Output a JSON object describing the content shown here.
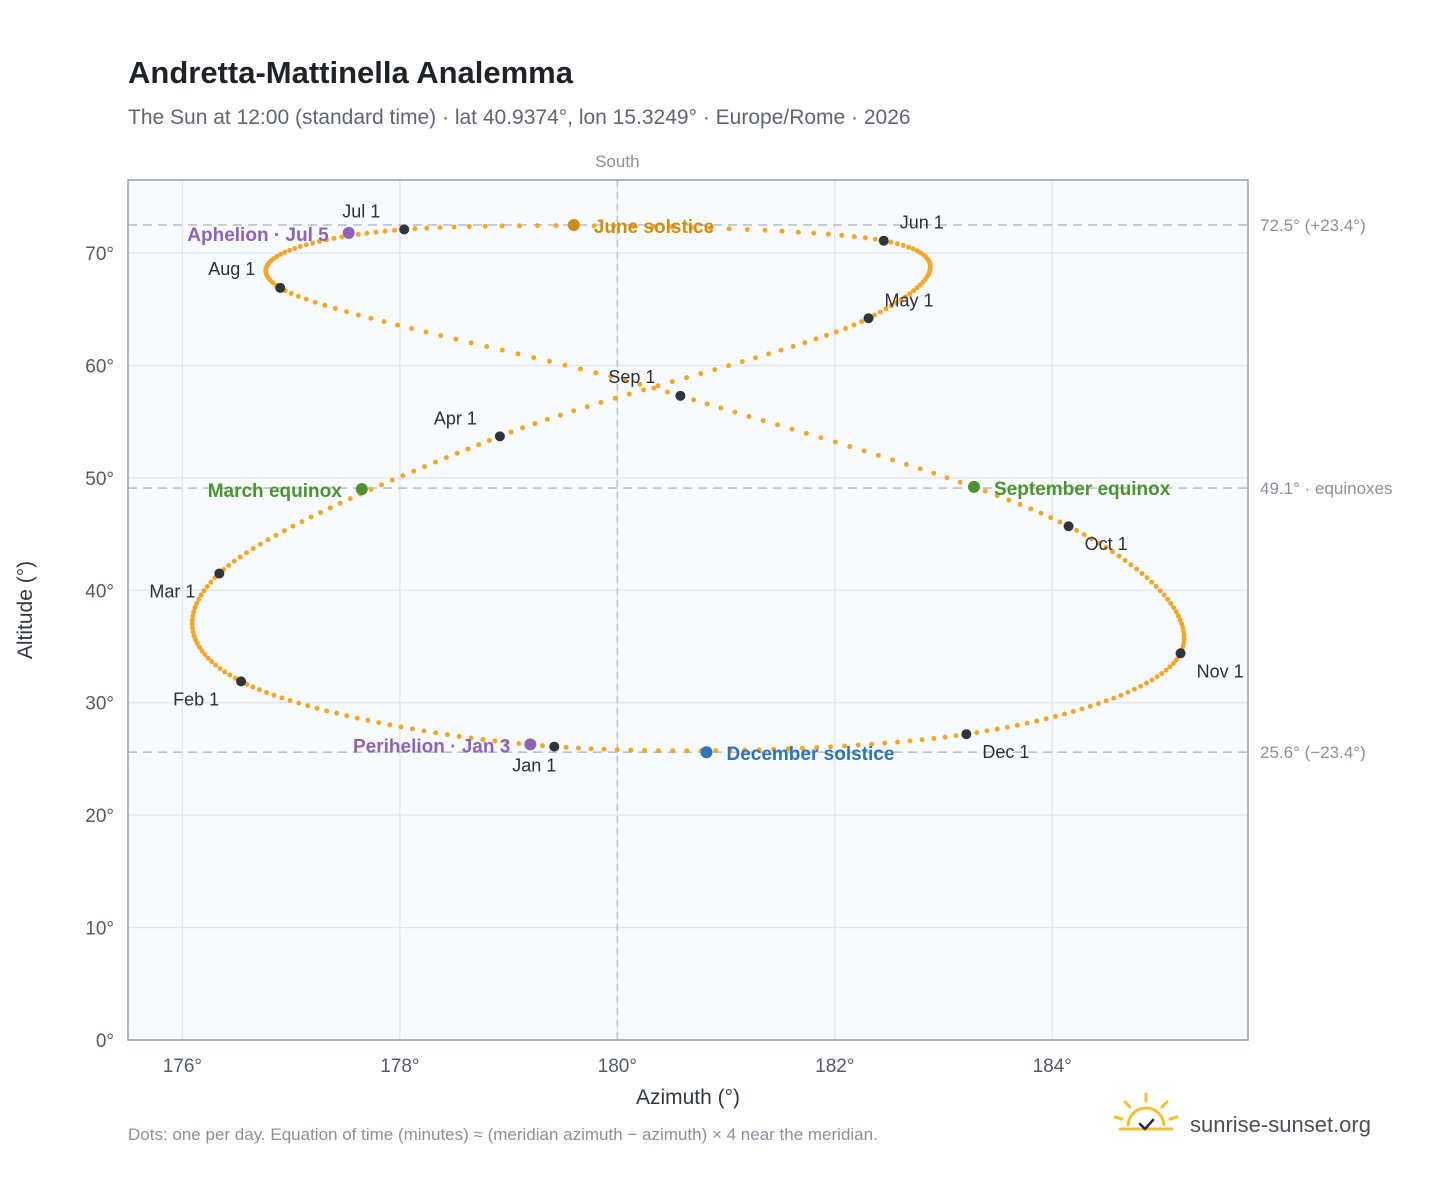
{
  "chart_data": {
    "type": "scatter",
    "title": "Andretta-Mattinella Analemma",
    "subtitle": "The Sun at 12:00 (standard time) · lat 40.9374°, lon 15.3249° · Europe/Rome · 2026",
    "xlabel": "Azimuth (°)",
    "ylabel": "Altitude (°)",
    "xlim": [
      175.5,
      185.8
    ],
    "ylim": [
      0,
      76.5
    ],
    "x_ticks": [
      176,
      178,
      180,
      182,
      184
    ],
    "x_tick_labels": [
      "176°",
      "178°",
      "180°",
      "182°",
      "184°"
    ],
    "y_ticks": [
      0,
      10,
      20,
      30,
      40,
      50,
      60,
      70
    ],
    "y_tick_labels": [
      "0°",
      "10°",
      "20°",
      "30°",
      "40°",
      "50°",
      "60°",
      "70°"
    ],
    "grid": true,
    "meridian": {
      "x": 180,
      "label": "South"
    },
    "reference_lines": [
      {
        "y": 72.5,
        "label": "72.5° (+23.4°)"
      },
      {
        "y": 49.1,
        "label": "49.1° · equinoxes"
      },
      {
        "y": 25.6,
        "label": "25.6° (−23.4°)"
      }
    ],
    "path_color": "#f4a62a",
    "monthly_points": [
      {
        "label": "Jan 1",
        "x": 179.42,
        "y": 26.1
      },
      {
        "label": "Feb 1",
        "x": 176.54,
        "y": 31.9
      },
      {
        "label": "Mar 1",
        "x": 176.34,
        "y": 41.5
      },
      {
        "label": "Apr 1",
        "x": 178.92,
        "y": 53.7
      },
      {
        "label": "May 1",
        "x": 182.31,
        "y": 64.2
      },
      {
        "label": "Jun 1",
        "x": 182.45,
        "y": 71.1
      },
      {
        "label": "Jul 1",
        "x": 178.04,
        "y": 72.1
      },
      {
        "label": "Aug 1",
        "x": 176.9,
        "y": 66.9
      },
      {
        "label": "Sep 1",
        "x": 180.58,
        "y": 57.3
      },
      {
        "label": "Oct 1",
        "x": 184.15,
        "y": 45.7
      },
      {
        "label": "Nov 1",
        "x": 185.18,
        "y": 34.4
      },
      {
        "label": "Dec 1",
        "x": 183.21,
        "y": 27.2
      }
    ],
    "events": [
      {
        "label": "June solstice",
        "x": 179.6,
        "y": 72.5,
        "color": "#d18e0e"
      },
      {
        "label": "Aphelion · Jul 5",
        "x": 177.53,
        "y": 71.8,
        "color": "#8e63b5"
      },
      {
        "label": "March equinox",
        "x": 177.65,
        "y": 49.0,
        "color": "#4e9232"
      },
      {
        "label": "September equinox",
        "x": 183.28,
        "y": 49.2,
        "color": "#4e9232"
      },
      {
        "label": "Perihelion · Jan 3",
        "x": 179.2,
        "y": 26.3,
        "color": "#8e63b5"
      },
      {
        "label": "December solstice",
        "x": 180.82,
        "y": 25.6,
        "color": "#2f73b5"
      }
    ]
  },
  "footnote": "Dots: one per day. Equation of time (minutes) ≈ (meridian azimuth − azimuth) × 4 near the meridian.",
  "brand": {
    "name": "sunrise-sunset.org",
    "icon": "sun-check-icon",
    "color": "#f2c12e"
  }
}
